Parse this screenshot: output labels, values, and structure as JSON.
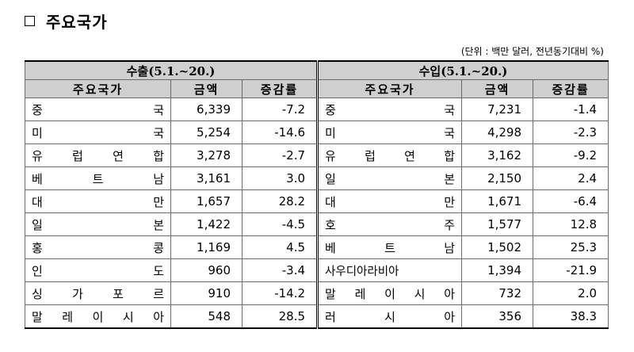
{
  "heading": "주요국가",
  "unit_note": "(단위 : 백만 달러, 전년동기대비 %)",
  "groups": {
    "export": "수출(5.1.~20.)",
    "import": "수입(5.1.~20.)"
  },
  "columns": {
    "country": "주요국가",
    "amount": "금액",
    "change": "증감률"
  },
  "rows": [
    {
      "exp_country": "중국",
      "exp_amount": "6,339",
      "exp_change": "-7.2",
      "imp_country": "중국",
      "imp_amount": "7,231",
      "imp_change": "-1.4"
    },
    {
      "exp_country": "미국",
      "exp_amount": "5,254",
      "exp_change": "-14.6",
      "imp_country": "미국",
      "imp_amount": "4,298",
      "imp_change": "-2.3"
    },
    {
      "exp_country": "유럽연합",
      "exp_amount": "3,278",
      "exp_change": "-2.7",
      "imp_country": "유럽연합",
      "imp_amount": "3,162",
      "imp_change": "-9.2"
    },
    {
      "exp_country": "베트남",
      "exp_amount": "3,161",
      "exp_change": "3.0",
      "imp_country": "일본",
      "imp_amount": "2,150",
      "imp_change": "2.4"
    },
    {
      "exp_country": "대만",
      "exp_amount": "1,657",
      "exp_change": "28.2",
      "imp_country": "대만",
      "imp_amount": "1,671",
      "imp_change": "-6.4"
    },
    {
      "exp_country": "일본",
      "exp_amount": "1,422",
      "exp_change": "-4.5",
      "imp_country": "호주",
      "imp_amount": "1,577",
      "imp_change": "12.8"
    },
    {
      "exp_country": "홍콩",
      "exp_amount": "1,169",
      "exp_change": "4.5",
      "imp_country": "베트남",
      "imp_amount": "1,502",
      "imp_change": "25.3"
    },
    {
      "exp_country": "인도",
      "exp_amount": "960",
      "exp_change": "-3.4",
      "imp_country": "사우디아라비아",
      "imp_amount": "1,394",
      "imp_change": "-21.9"
    },
    {
      "exp_country": "싱가포르",
      "exp_amount": "910",
      "exp_change": "-14.2",
      "imp_country": "말레이시아",
      "imp_amount": "732",
      "imp_change": "2.0"
    },
    {
      "exp_country": "말레이시아",
      "exp_amount": "548",
      "exp_change": "28.5",
      "imp_country": "러시아",
      "imp_amount": "356",
      "imp_change": "38.3"
    }
  ]
}
